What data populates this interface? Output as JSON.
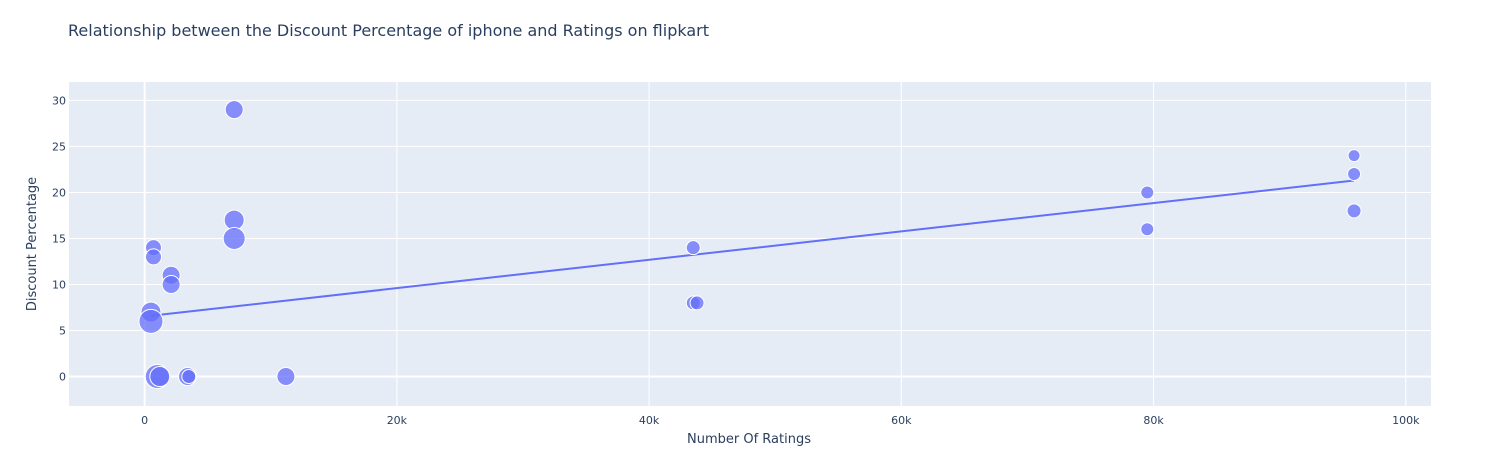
{
  "chart_data": {
    "type": "scatter",
    "title": "Relationship between the Discount Percentage of iphone and  Ratings on flipkart",
    "xlabel": "Number Of Ratings",
    "ylabel": "Discount Percentage",
    "xlim": [
      -6000,
      102000
    ],
    "ylim": [
      -3.2,
      32
    ],
    "x_ticks": [
      0,
      20000,
      40000,
      60000,
      80000,
      100000
    ],
    "x_tick_labels": [
      "0",
      "20k",
      "40k",
      "60k",
      "80k",
      "100k"
    ],
    "y_ticks": [
      0,
      5,
      10,
      15,
      20,
      25,
      30
    ],
    "y_tick_labels": [
      "0",
      "5",
      "10",
      "15",
      "20",
      "25",
      "30"
    ],
    "grid": true,
    "legend": "none",
    "colors": {
      "background": "#e5ecf6",
      "grid": "#ffffff",
      "marker": "#636efa",
      "trendline": "#636efa"
    },
    "points": [
      {
        "x": 7100,
        "y": 29,
        "size": 9
      },
      {
        "x": 7100,
        "y": 17,
        "size": 10
      },
      {
        "x": 7100,
        "y": 15,
        "size": 11
      },
      {
        "x": 700,
        "y": 14,
        "size": 8
      },
      {
        "x": 700,
        "y": 13,
        "size": 8
      },
      {
        "x": 2100,
        "y": 11,
        "size": 9
      },
      {
        "x": 2100,
        "y": 10,
        "size": 9
      },
      {
        "x": 500,
        "y": 7,
        "size": 10
      },
      {
        "x": 500,
        "y": 6,
        "size": 12
      },
      {
        "x": 1000,
        "y": 0,
        "size": 12
      },
      {
        "x": 1200,
        "y": 0,
        "size": 10
      },
      {
        "x": 3400,
        "y": 0,
        "size": 9
      },
      {
        "x": 3500,
        "y": 0,
        "size": 7
      },
      {
        "x": 11200,
        "y": 0,
        "size": 9
      },
      {
        "x": 43500,
        "y": 14,
        "size": 7
      },
      {
        "x": 43500,
        "y": 8,
        "size": 7
      },
      {
        "x": 43800,
        "y": 8,
        "size": 7
      },
      {
        "x": 79500,
        "y": 20,
        "size": 6.5
      },
      {
        "x": 79500,
        "y": 16,
        "size": 6.5
      },
      {
        "x": 95900,
        "y": 24,
        "size": 6
      },
      {
        "x": 95900,
        "y": 22,
        "size": 6.5
      },
      {
        "x": 95900,
        "y": 18,
        "size": 7
      }
    ],
    "trendline": {
      "x": [
        500,
        95900
      ],
      "y": [
        6.6,
        21.3
      ]
    }
  }
}
